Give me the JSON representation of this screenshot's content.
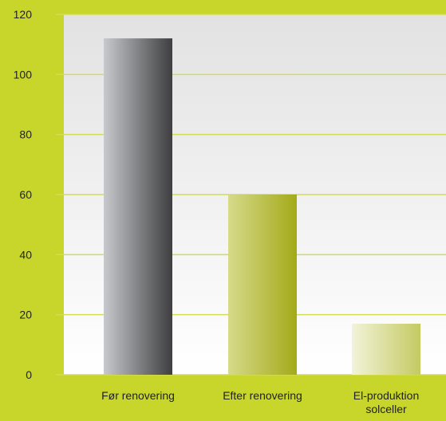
{
  "chart_data": {
    "type": "bar",
    "categories": [
      "Før renovering",
      "Efter renovering",
      "El-produktion solceller"
    ],
    "category_lines": [
      [
        "Før renovering"
      ],
      [
        "Efter renovering"
      ],
      [
        "El-produktion",
        "solceller"
      ]
    ],
    "values": [
      112,
      60,
      17
    ],
    "ylim": [
      0,
      120
    ],
    "yticks": [
      "0",
      "20",
      "40",
      "60",
      "80",
      "100",
      "120"
    ],
    "grid": true,
    "title": "",
    "xlabel": "",
    "ylabel": ""
  },
  "colors": {
    "background": "#c8d62c",
    "plot_top": "#e2e2e2",
    "plot_bottom": "#ffffff",
    "gridline": "#d2dc55",
    "bar1_light": "#c7c9cc",
    "bar1_dark": "#3e3e40",
    "bar2_light": "#d6da8a",
    "bar2_dark": "#a3aa18",
    "bar3_light": "#f2f3d9",
    "bar3_dark": "#c4ca62"
  }
}
